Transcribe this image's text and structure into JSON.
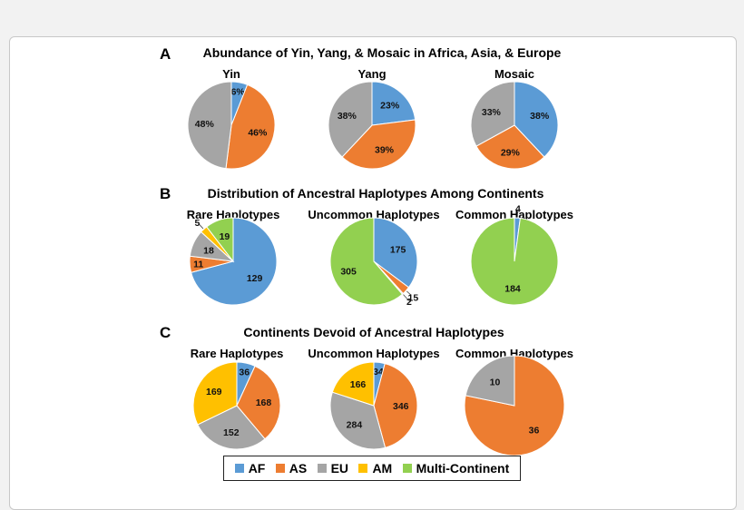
{
  "colors": {
    "AF": "#5b9bd5",
    "AS": "#ed7d31",
    "EU": "#a5a5a5",
    "AM": "#ffc000",
    "Multi-Continent": "#92d050"
  },
  "legend": [
    {
      "key": "AF",
      "label": "AF"
    },
    {
      "key": "AS",
      "label": "AS"
    },
    {
      "key": "EU",
      "label": "EU"
    },
    {
      "key": "AM",
      "label": "AM"
    },
    {
      "key": "Multi-Continent",
      "label": "Multi-Continent"
    }
  ],
  "panels": [
    {
      "letter": "A",
      "title": "Abundance of Yin, Yang, & Mosaic in Africa, Asia, & Europe"
    },
    {
      "letter": "B",
      "title": "Distribution of Ancestral Haplotypes Among Continents"
    },
    {
      "letter": "C",
      "title": "Continents Devoid of Ancestral Haplotypes"
    }
  ],
  "chart_data": [
    {
      "type": "pie",
      "panel": "A",
      "title": "Yin",
      "categories": [
        "AF",
        "AS",
        "EU"
      ],
      "values": [
        6,
        46,
        48
      ],
      "labels": [
        "6%",
        "46%",
        "48%"
      ]
    },
    {
      "type": "pie",
      "panel": "A",
      "title": "Yang",
      "categories": [
        "AF",
        "AS",
        "EU"
      ],
      "values": [
        23,
        39,
        38
      ],
      "labels": [
        "23%",
        "39%",
        "38%"
      ]
    },
    {
      "type": "pie",
      "panel": "A",
      "title": "Mosaic",
      "categories": [
        "AF",
        "AS",
        "EU"
      ],
      "values": [
        38,
        29,
        33
      ],
      "labels": [
        "38%",
        "29%",
        "33%"
      ]
    },
    {
      "type": "pie",
      "panel": "B",
      "title": "Rare Haplotypes",
      "categories": [
        "AF",
        "AS",
        "EU",
        "AM",
        "Multi-Continent"
      ],
      "values": [
        129,
        11,
        18,
        5,
        19
      ],
      "labels": [
        "129",
        "11",
        "18",
        "5",
        "19"
      ]
    },
    {
      "type": "pie",
      "panel": "B",
      "title": "Uncommon Haplotypes",
      "categories": [
        "AF",
        "AS",
        "EU",
        "Multi-Continent"
      ],
      "values": [
        175,
        15,
        2,
        305
      ],
      "labels": [
        "175",
        "15",
        "2",
        "305"
      ]
    },
    {
      "type": "pie",
      "panel": "B",
      "title": "Common Haplotypes",
      "categories": [
        "AF",
        "Multi-Continent"
      ],
      "values": [
        4,
        184
      ],
      "labels": [
        "4",
        "184"
      ]
    },
    {
      "type": "pie",
      "panel": "C",
      "title": "Rare Haplotypes",
      "categories": [
        "AF",
        "AS",
        "EU",
        "AM"
      ],
      "values": [
        36,
        168,
        152,
        169
      ],
      "labels": [
        "36",
        "168",
        "152",
        "169"
      ]
    },
    {
      "type": "pie",
      "panel": "C",
      "title": "Uncommon Haplotypes",
      "categories": [
        "AF",
        "AS",
        "EU",
        "AM"
      ],
      "values": [
        34,
        346,
        284,
        166
      ],
      "labels": [
        "34",
        "346",
        "284",
        "166"
      ]
    },
    {
      "type": "pie",
      "panel": "C",
      "title": "Common Haplotypes",
      "categories": [
        "AS",
        "EU"
      ],
      "values": [
        36,
        10
      ],
      "labels": [
        "36",
        "10"
      ]
    }
  ]
}
